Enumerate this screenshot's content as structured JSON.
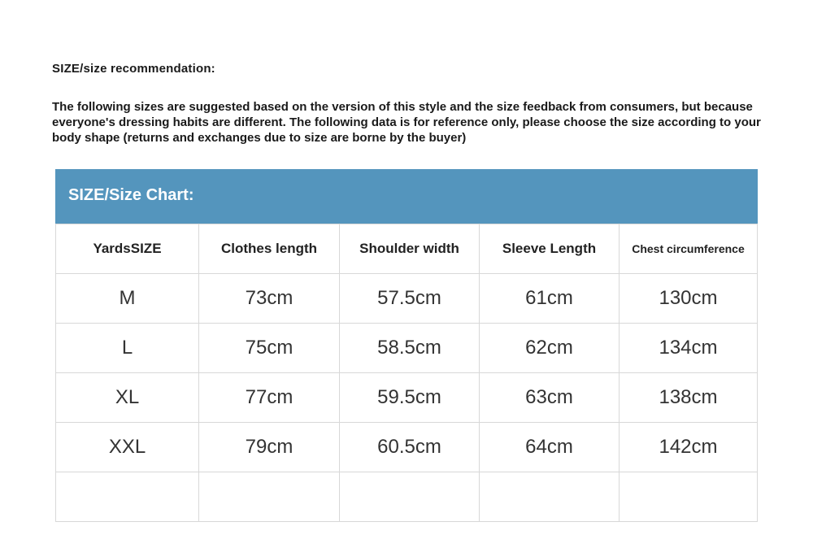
{
  "heading": "SIZE/size recommendation:",
  "intro": "The following sizes are suggested based on the version of this style and the size feedback from consumers, but because everyone's dressing habits are different. The following data is for reference only, please choose the size according to your body shape (returns and exchanges due to size are borne by the buyer)",
  "table": {
    "title": "SIZE/Size Chart:",
    "header_color": "#5495bd",
    "columns": [
      "YardsSIZE",
      "Clothes length",
      "Shoulder width",
      "Sleeve Length",
      "Chest circumference"
    ],
    "rows": [
      [
        "M",
        "73cm",
        "57.5cm",
        "61cm",
        "130cm"
      ],
      [
        "L",
        "75cm",
        "58.5cm",
        "62cm",
        "134cm"
      ],
      [
        "XL",
        "77cm",
        "59.5cm",
        "63cm",
        "138cm"
      ],
      [
        "XXL",
        "79cm",
        "60.5cm",
        "64cm",
        "142cm"
      ],
      [
        "",
        "",
        "",
        "",
        ""
      ]
    ]
  }
}
